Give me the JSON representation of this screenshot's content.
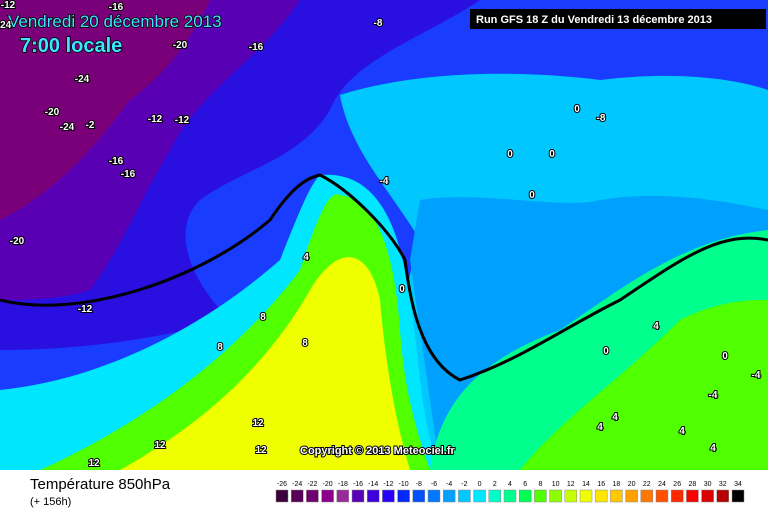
{
  "header": {
    "date": "Vendredi 20 décembre 2013",
    "time": "7:00 locale",
    "run": "Run GFS 18 Z du Vendredi 13 décembre 2013"
  },
  "footer": {
    "title": "Température 850hPa",
    "lead": "(+ 156h)",
    "copyright": "Copyright © 2013 Meteociel.fr"
  },
  "contour_labels": [
    "-12",
    "-16",
    "-20",
    "-16",
    "-8",
    "-24",
    "-24",
    "-20",
    "-24",
    "-2",
    "-12",
    "-12",
    "-16",
    "-16",
    "-20",
    "-12",
    "-4",
    "0",
    "0",
    "0",
    "0",
    "-8",
    "0",
    "4",
    "8",
    "8",
    "8",
    "12",
    "12",
    "12",
    "12",
    "4",
    "0",
    "0",
    "-4",
    "-4",
    "4",
    "4",
    "4",
    "4"
  ],
  "colorbar": {
    "ticks": [
      -26,
      -24,
      -22,
      -20,
      -18,
      -16,
      -14,
      -12,
      -10,
      -8,
      -6,
      -4,
      -2,
      0,
      2,
      4,
      6,
      8,
      10,
      12,
      14,
      16,
      18,
      20,
      22,
      24,
      26,
      28,
      30,
      32,
      34
    ],
    "colors": [
      "#3a003a",
      "#560056",
      "#700070",
      "#8a008a",
      "#9a2a9a",
      "#5a00b4",
      "#3c00dc",
      "#2800ff",
      "#0028ff",
      "#0050ff",
      "#0078ff",
      "#00a0ff",
      "#00c8ff",
      "#00e6ff",
      "#00ffc8",
      "#00ff8c",
      "#00ff50",
      "#50ff00",
      "#8cff00",
      "#c8ff00",
      "#f0ff00",
      "#ffe600",
      "#ffc800",
      "#ffa000",
      "#ff7800",
      "#ff5000",
      "#ff2800",
      "#ff0000",
      "#dc0000",
      "#b40000",
      "#000000"
    ]
  }
}
